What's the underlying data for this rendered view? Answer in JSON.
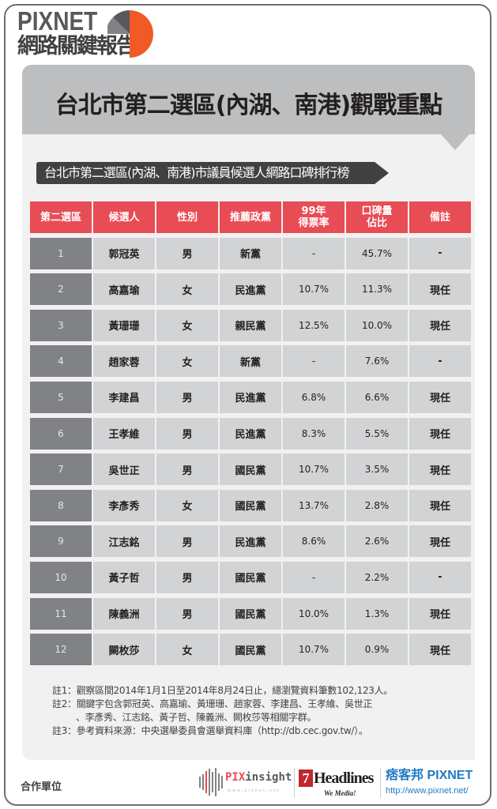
{
  "brand": {
    "name_en": "PIXNET",
    "name_zh": "網路關鍵報告",
    "colors": {
      "accent": "#f15a24",
      "pie_gray": "#808285",
      "pie_dark": "#58595b"
    }
  },
  "title": "台北市第二選區(內湖、南港)觀戰重點",
  "subtitle": "台北市第二選區(內湖、南港)市議員候選人網路口碑排行榜",
  "table": {
    "headers": [
      "第二選區",
      "候選人",
      "性別",
      "推薦政黨",
      "99年\n得票率",
      "口碑量\n佔比",
      "備註"
    ],
    "rows": [
      [
        "1",
        "郭冠英",
        "男",
        "新黨",
        "-",
        "45.7%",
        "-"
      ],
      [
        "2",
        "高嘉瑜",
        "女",
        "民進黨",
        "10.7%",
        "11.3%",
        "現任"
      ],
      [
        "3",
        "黃珊珊",
        "女",
        "親民黨",
        "12.5%",
        "10.0%",
        "現任"
      ],
      [
        "4",
        "趙家蓉",
        "女",
        "新黨",
        "-",
        "7.6%",
        "-"
      ],
      [
        "5",
        "李建昌",
        "男",
        "民進黨",
        "6.8%",
        "6.6%",
        "現任"
      ],
      [
        "6",
        "王孝維",
        "男",
        "民進黨",
        "8.3%",
        "5.5%",
        "現任"
      ],
      [
        "7",
        "吳世正",
        "男",
        "國民黨",
        "10.7%",
        "3.5%",
        "現任"
      ],
      [
        "8",
        "李彥秀",
        "女",
        "國民黨",
        "13.7%",
        "2.8%",
        "現任"
      ],
      [
        "9",
        "江志銘",
        "男",
        "民進黨",
        "8.6%",
        "2.6%",
        "現任"
      ],
      [
        "10",
        "黃子哲",
        "男",
        "國民黨",
        "-",
        "2.2%",
        "-"
      ],
      [
        "11",
        "陳義洲",
        "男",
        "國民黨",
        "10.0%",
        "1.3%",
        "現任"
      ],
      [
        "12",
        "闕枚莎",
        "女",
        "國民黨",
        "10.7%",
        "0.9%",
        "現任"
      ]
    ],
    "colors": {
      "header": "#e84c55",
      "rank_cell": "#808285",
      "cell": "#d1d3d4"
    }
  },
  "notes": [
    "註1：觀察區間2014年1月1日至2014年8月24日止，總瀏覽資料筆數102,123人。",
    "註2：關鍵字包含郭冠英、高嘉瑜、黃珊珊、趙家蓉、李建昌、王孝維、吳世正",
    "、李彥秀、江志銘、黃子哲、陳義洲、闕枚莎等相關字群。",
    "註3：參考資料來源：中央選舉委員會選舉資料庫（http://db.cec.gov.tw/）。"
  ],
  "footer": {
    "partner_label": "合作單位",
    "pixinsight": {
      "pix": "PIX",
      "insight": "insight",
      "url": "www.pixnet.net"
    },
    "headlines": {
      "seven": "7",
      "name": "Headlines",
      "tagline": "We Media!"
    },
    "pixnet": {
      "name": "痞客邦 PIXNET",
      "url": "http://www.pixnet.net/"
    }
  }
}
